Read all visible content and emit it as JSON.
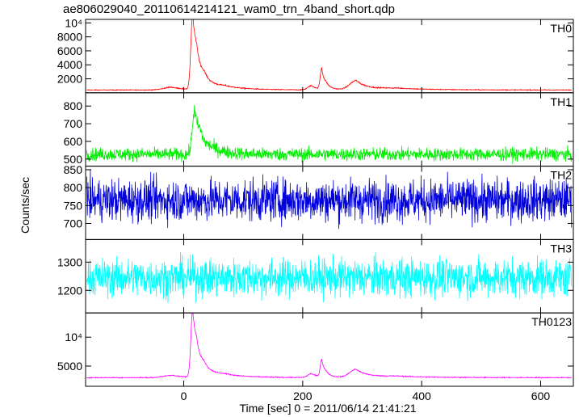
{
  "title": "ae806029040_20110614214121_wam0_trn_4band_short.qdp",
  "xlabel": "Time [sec] 0 = 2011/06/14 21:41:21",
  "ylabel": "Counts/sec",
  "chart_data": {
    "type": "line",
    "title": "ae806029040_20110614214121_wam0_trn_4band_short.qdp",
    "xlabel": "Time [sec] 0 = 2011/06/14 21:41:21",
    "ylabel": "Counts/sec",
    "xlim": [
      -165,
      655
    ],
    "xticks": [
      0,
      200,
      400,
      600
    ],
    "xtick_labels": [
      "0",
      "200",
      "400",
      "600"
    ],
    "panels": [
      {
        "name": "TH0",
        "color": "#ff0000",
        "ylim": [
          0,
          10500
        ],
        "yticks": [
          2000,
          4000,
          6000,
          8000,
          10000
        ],
        "ytick_labels": [
          "2000",
          "4000",
          "6000",
          "8000",
          "10⁴"
        ],
        "baseline": 400,
        "noise": 40,
        "pulses": [
          {
            "t": -20,
            "amp": 400,
            "w": 22
          },
          {
            "t": 15,
            "amp": 9800,
            "w": 5
          },
          {
            "t": 22,
            "amp": 3600,
            "w": 8
          },
          {
            "t": 35,
            "amp": 1600,
            "w": 14
          },
          {
            "t": 70,
            "amp": 500,
            "w": 40
          },
          {
            "t": 215,
            "amp": 600,
            "w": 10
          },
          {
            "t": 232,
            "amp": 2800,
            "w": 4
          },
          {
            "t": 240,
            "amp": 700,
            "w": 10
          },
          {
            "t": 290,
            "amp": 1300,
            "w": 18
          },
          {
            "t": 360,
            "amp": 250,
            "w": 60
          }
        ]
      },
      {
        "name": "TH1",
        "color": "#00ee00",
        "ylim": [
          460,
          875
        ],
        "yticks": [
          500,
          600,
          700,
          800
        ],
        "ytick_labels": [
          "500",
          "600",
          "700",
          "800"
        ],
        "baseline": 527,
        "noise": 26,
        "pulses": [
          {
            "t": 18,
            "amp": 230,
            "w": 6
          },
          {
            "t": 28,
            "amp": 90,
            "w": 10
          },
          {
            "t": 50,
            "amp": 30,
            "w": 25
          }
        ]
      },
      {
        "name": "TH2",
        "color": "#0000dd",
        "ylim": [
          655,
          860
        ],
        "yticks": [
          700,
          750,
          800,
          850
        ],
        "ytick_labels": [
          "700",
          "750",
          "800",
          "850"
        ],
        "baseline": 765,
        "noise": 42,
        "pulses": []
      },
      {
        "name": "TH3",
        "color": "#00ffff",
        "ylim": [
          1120,
          1380
        ],
        "yticks": [
          1200,
          1300
        ],
        "ytick_labels": [
          "1200",
          "1300"
        ],
        "baseline": 1245,
        "noise": 48,
        "pulses": []
      },
      {
        "name": "TH0123",
        "color": "#ff00ff",
        "ylim": [
          1500,
          14200
        ],
        "yticks": [
          5000,
          10000
        ],
        "ytick_labels": [
          "5000",
          "10⁴"
        ],
        "baseline": 3000,
        "noise": 60,
        "pulses": [
          {
            "t": -20,
            "amp": 400,
            "w": 22
          },
          {
            "t": 15,
            "amp": 10700,
            "w": 5
          },
          {
            "t": 22,
            "amp": 3700,
            "w": 8
          },
          {
            "t": 35,
            "amp": 1700,
            "w": 14
          },
          {
            "t": 70,
            "amp": 550,
            "w": 40
          },
          {
            "t": 215,
            "amp": 700,
            "w": 10
          },
          {
            "t": 232,
            "amp": 2800,
            "w": 4
          },
          {
            "t": 240,
            "amp": 700,
            "w": 10
          },
          {
            "t": 290,
            "amp": 1400,
            "w": 18
          },
          {
            "t": 360,
            "amp": 250,
            "w": 60
          }
        ]
      }
    ]
  }
}
